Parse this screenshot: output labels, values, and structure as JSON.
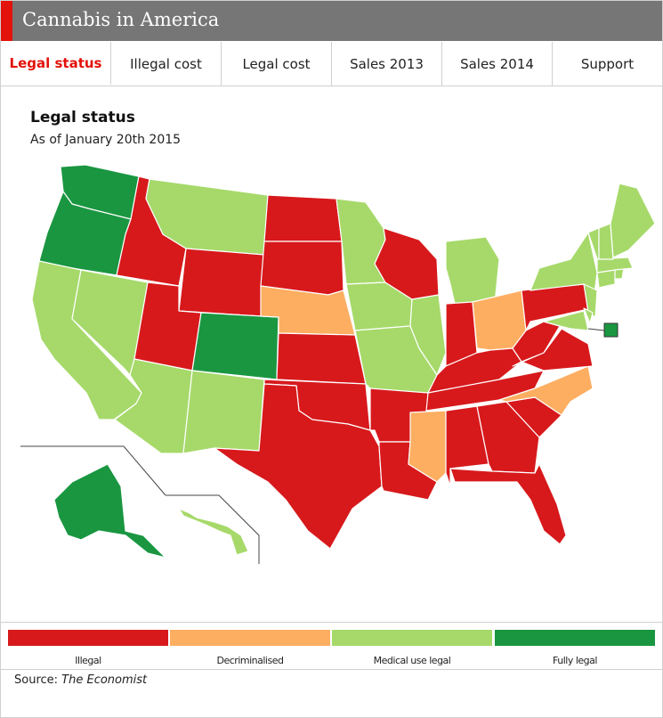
{
  "header": {
    "title": "Cannabis in America"
  },
  "tabs": [
    {
      "label": "Legal status",
      "active": true
    },
    {
      "label": "Illegal cost",
      "active": false
    },
    {
      "label": "Legal cost",
      "active": false
    },
    {
      "label": "Sales 2013",
      "active": false
    },
    {
      "label": "Sales 2014",
      "active": false
    },
    {
      "label": "Support",
      "active": false
    }
  ],
  "colors": {
    "illegal": "#d7191c",
    "decriminalised": "#fdae61",
    "medical": "#a6d96a",
    "legal": "#1a9641",
    "brand": "#e3120b"
  },
  "chart_data": {
    "type": "map",
    "title": "Legal status",
    "subtitle": "As of January 20th 2015",
    "categories": [
      "Illegal",
      "Decriminalised",
      "Medical use legal",
      "Fully legal"
    ],
    "states": {
      "WA": "Fully legal",
      "OR": "Fully legal",
      "CO": "Fully legal",
      "AK": "Fully legal",
      "DC": "Fully legal",
      "NE": "Decriminalised",
      "OH": "Decriminalised",
      "MS": "Decriminalised",
      "NC": "Decriminalised",
      "CA": "Medical use legal",
      "NV": "Medical use legal",
      "AZ": "Medical use legal",
      "NM": "Medical use legal",
      "MT": "Medical use legal",
      "MN": "Medical use legal",
      "IA": "Medical use legal",
      "MO": "Medical use legal",
      "IL": "Medical use legal",
      "MI": "Medical use legal",
      "NY": "Medical use legal",
      "VT": "Medical use legal",
      "NH": "Medical use legal",
      "ME": "Medical use legal",
      "MA": "Medical use legal",
      "RI": "Medical use legal",
      "CT": "Medical use legal",
      "NJ": "Medical use legal",
      "DE": "Medical use legal",
      "MD": "Medical use legal",
      "HI": "Medical use legal",
      "ID": "Illegal",
      "WY": "Illegal",
      "UT": "Illegal",
      "ND": "Illegal",
      "SD": "Illegal",
      "KS": "Illegal",
      "OK": "Illegal",
      "TX": "Illegal",
      "AR": "Illegal",
      "LA": "Illegal",
      "WI": "Illegal",
      "IN": "Illegal",
      "KY": "Illegal",
      "TN": "Illegal",
      "AL": "Illegal",
      "GA": "Illegal",
      "FL": "Illegal",
      "SC": "Illegal",
      "VA": "Illegal",
      "WV": "Illegal",
      "PA": "Illegal"
    }
  },
  "legend": [
    {
      "label": "Illegal",
      "key": "illegal"
    },
    {
      "label": "Decriminalised",
      "key": "decriminalised"
    },
    {
      "label": "Medical use legal",
      "key": "medical"
    },
    {
      "label": "Fully legal",
      "key": "legal"
    }
  ],
  "source": {
    "prefix": "Source: ",
    "name": "The Economist"
  }
}
